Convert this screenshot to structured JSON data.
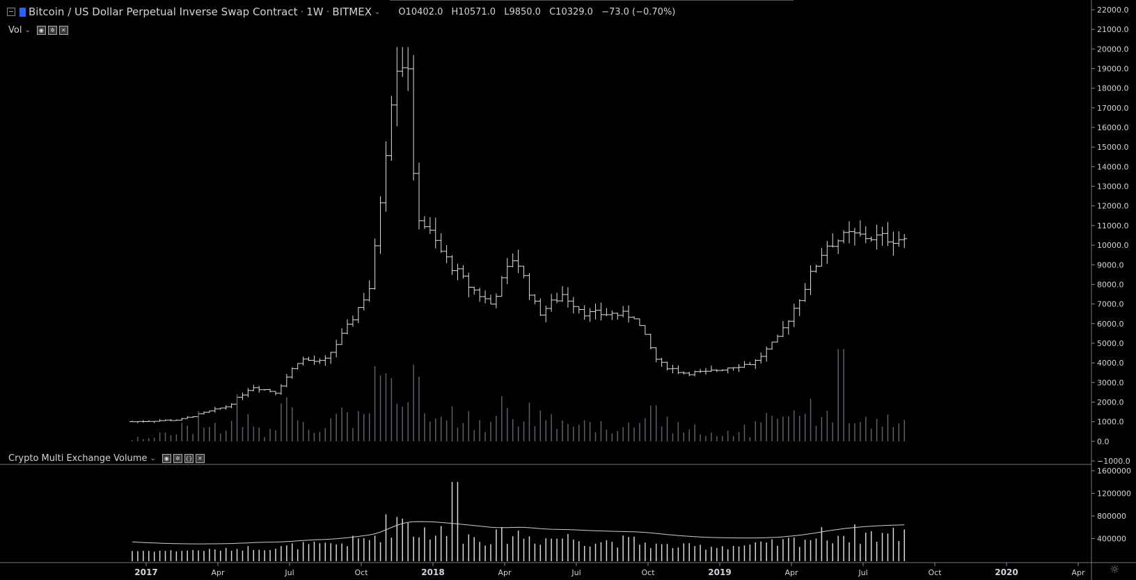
{
  "header": {
    "symbol": "Bitcoin / US Dollar Perpetual Inverse Swap Contract",
    "interval": "1W",
    "exchange": "BITMEX",
    "ohlc": {
      "open": "O10402.0",
      "high": "H10571.0",
      "low": "L9850.0",
      "close": "C10329.0",
      "change": "−73.0 (−0.70%)"
    }
  },
  "vol_legend": {
    "label": "Vol"
  },
  "lower_legend": {
    "label": "Crypto Multi Exchange Volume"
  },
  "chart_data": [
    {
      "type": "ohlc",
      "title": "Bitcoin / US Dollar Perpetual Inverse Swap Contract · 1W · BITMEX",
      "y_ticks": [
        "22000.0",
        "21000.0",
        "20000.0",
        "19000.0",
        "18000.0",
        "17000.0",
        "16000.0",
        "15000.0",
        "14000.0",
        "13000.0",
        "12000.0",
        "11000.0",
        "10000.0",
        "9000.0",
        "8000.0",
        "7000.0",
        "6000.0",
        "5000.0",
        "4000.0",
        "3000.0",
        "2000.0",
        "1000.0",
        "0.0",
        "−1000.0"
      ],
      "ylim": [
        -1000,
        22000
      ],
      "x_ticks": [
        "2017",
        "Apr",
        "Jul",
        "Oct",
        "2018",
        "Apr",
        "Jul",
        "Oct",
        "2019",
        "Apr",
        "Jul",
        "Oct",
        "2020",
        "Apr"
      ],
      "price_anchors": [
        [
          "2017-01",
          1000
        ],
        [
          "2017-03",
          1100
        ],
        [
          "2017-05",
          1800
        ],
        [
          "2017-06",
          2800
        ],
        [
          "2017-07",
          2500
        ],
        [
          "2017-08",
          4200
        ],
        [
          "2017-09",
          4000
        ],
        [
          "2017-10",
          5800
        ],
        [
          "2017-11",
          8000
        ],
        [
          "2017-12",
          19300
        ],
        [
          "2018-01",
          11500
        ],
        [
          "2018-02",
          9500
        ],
        [
          "2018-03",
          8000
        ],
        [
          "2018-04",
          7000
        ],
        [
          "2018-05",
          9500
        ],
        [
          "2018-06",
          6500
        ],
        [
          "2018-07",
          7500
        ],
        [
          "2018-08",
          6500
        ],
        [
          "2018-09",
          6500
        ],
        [
          "2018-10",
          6400
        ],
        [
          "2018-11",
          4000
        ],
        [
          "2018-12",
          3500
        ],
        [
          "2019-01",
          3500
        ],
        [
          "2019-02",
          3800
        ],
        [
          "2019-03",
          4000
        ],
        [
          "2019-04",
          5200
        ],
        [
          "2019-05",
          7500
        ],
        [
          "2019-06",
          10000
        ],
        [
          "2019-07",
          10500
        ],
        [
          "2019-08",
          10400
        ],
        [
          "2019-09",
          10329
        ]
      ],
      "peak_high": 20100,
      "last_close": 10329
    },
    {
      "type": "bar",
      "name": "Vol",
      "note": "volume histogram overlaid in main pane",
      "peak_week": "2019-06",
      "peak_value_in_price_units": 4700
    },
    {
      "type": "bar",
      "name": "Crypto Multi Exchange Volume",
      "y_ticks": [
        "1600000",
        "1200000",
        "800000",
        "400000"
      ],
      "ylim": [
        0,
        1600000
      ],
      "ma_line": true,
      "peak_value": 1400000
    }
  ]
}
